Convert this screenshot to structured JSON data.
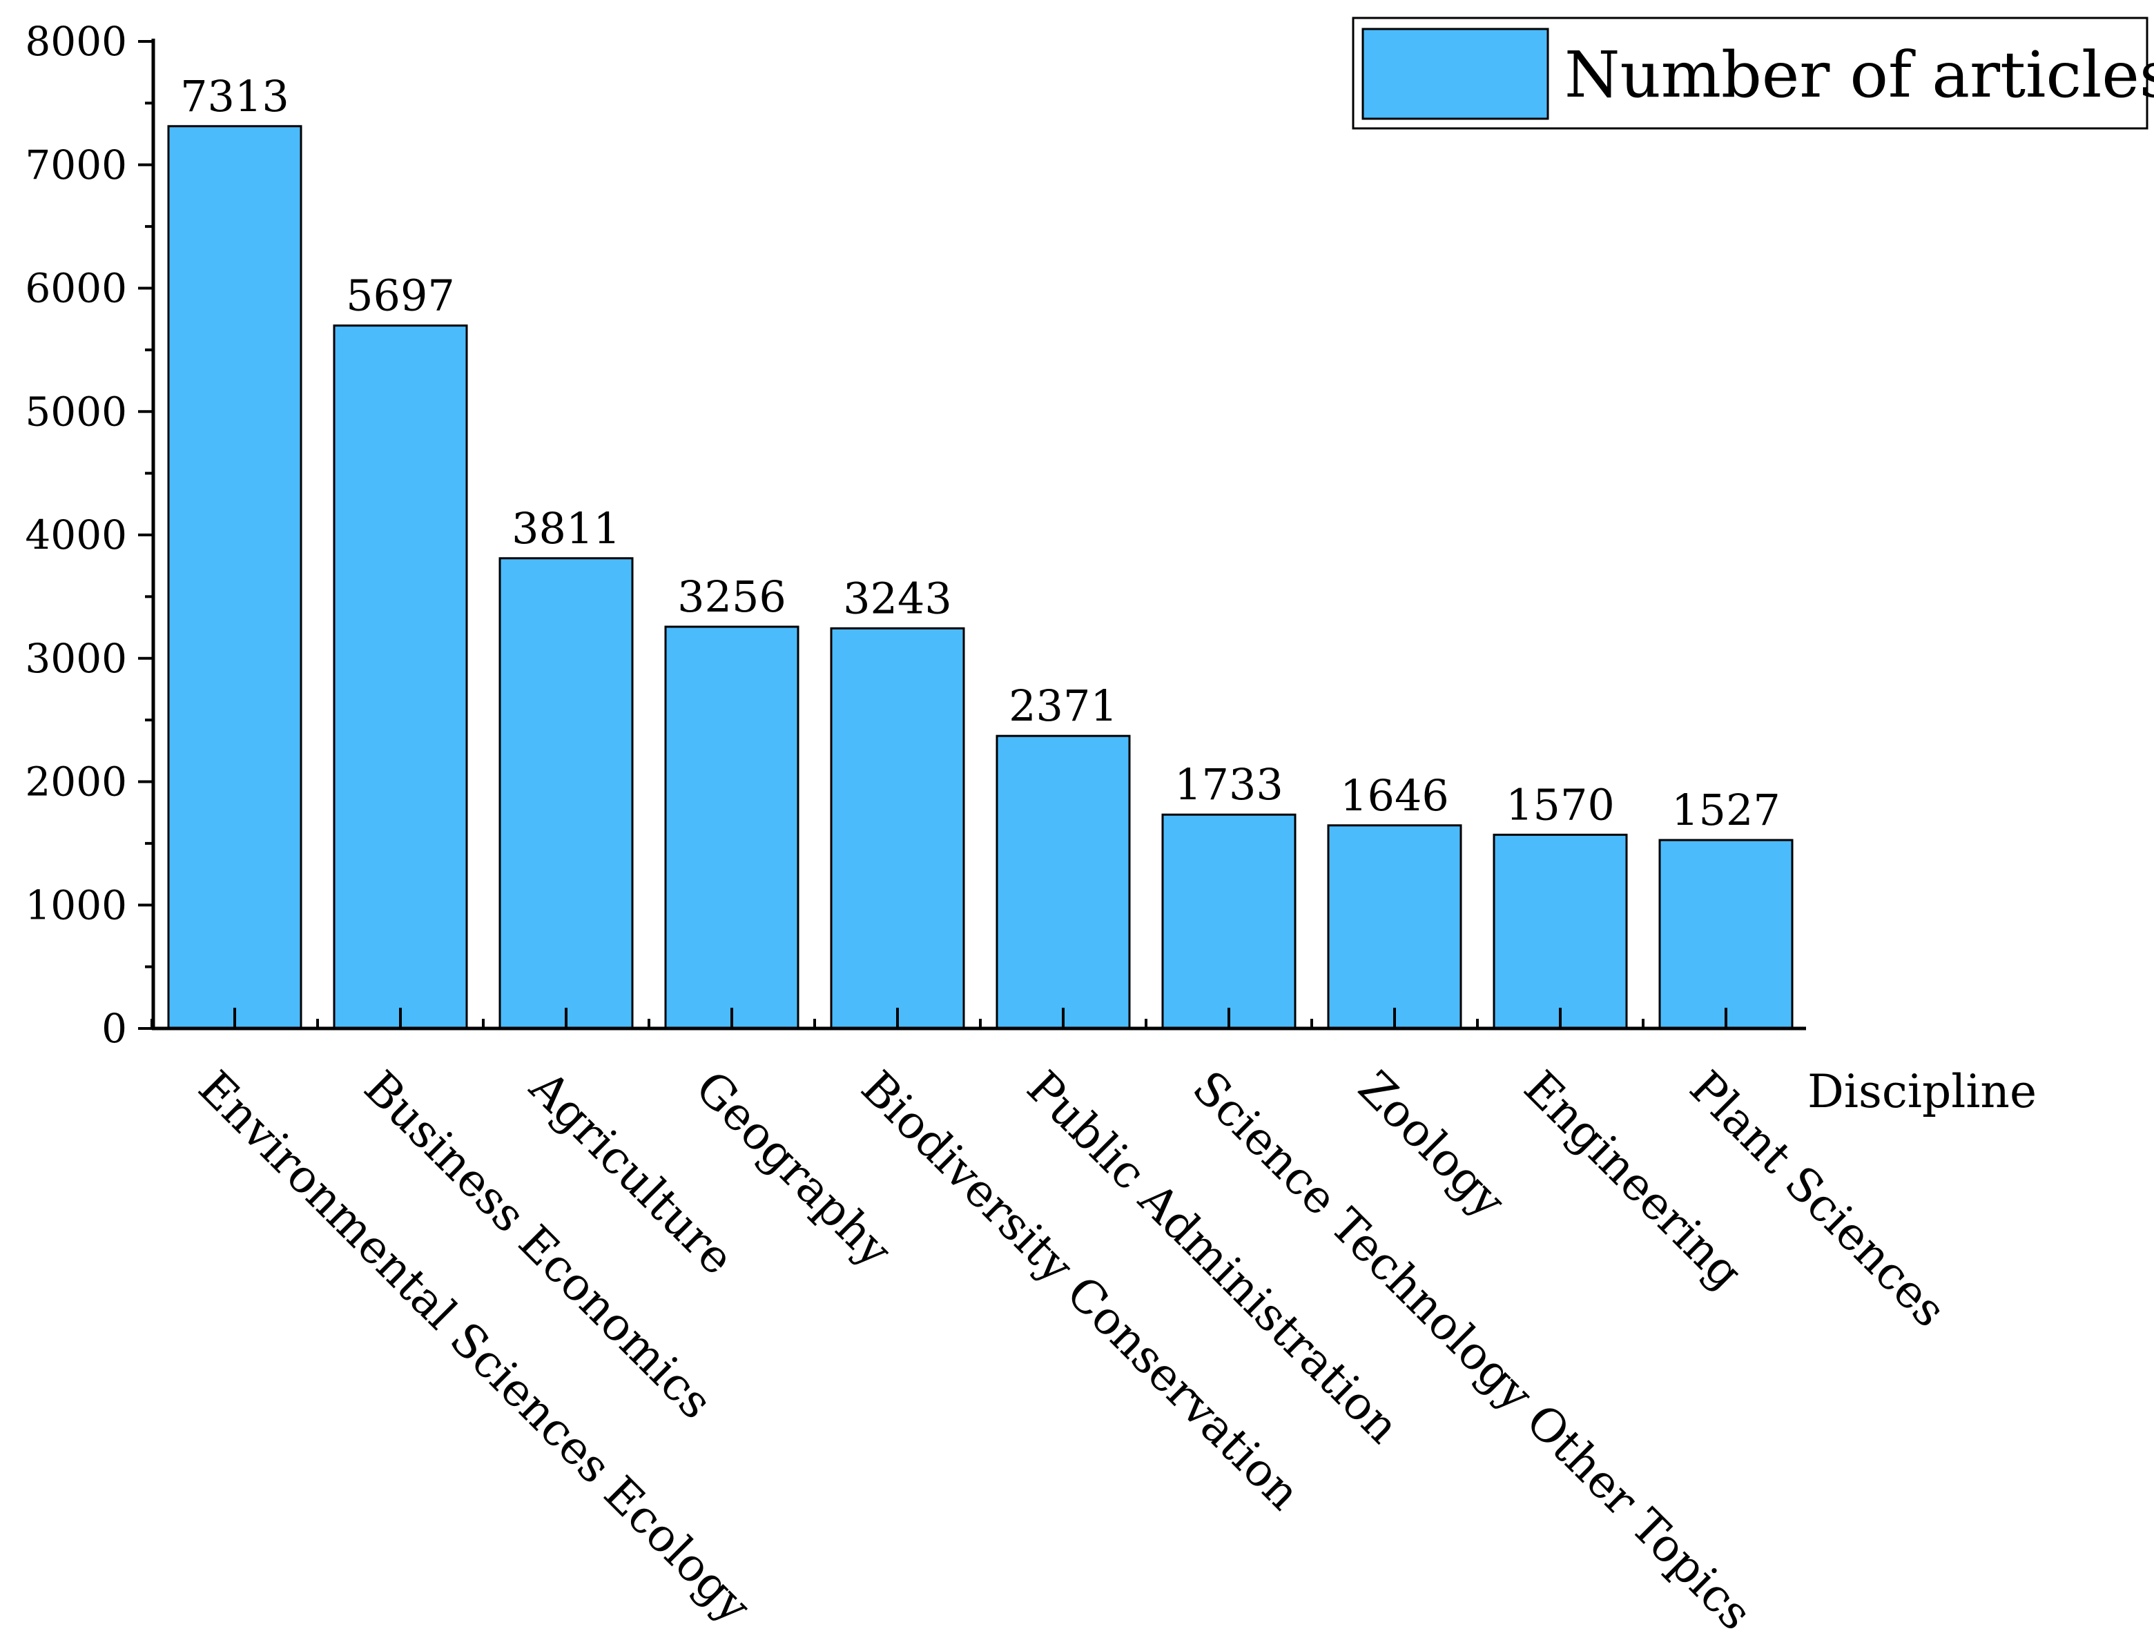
{
  "chart_data": {
    "type": "bar",
    "title": "",
    "xlabel": "Discipline",
    "ylabel": "",
    "ylim": [
      0,
      8000
    ],
    "yticks": [
      0,
      1000,
      2000,
      3000,
      4000,
      5000,
      6000,
      7000,
      8000
    ],
    "grid": false,
    "legend": {
      "placement": "top-right"
    },
    "categories": [
      "Environmental Sciences Ecology",
      "Business Economics",
      "Agriculture",
      "Geography",
      "Biodiversity Conservation",
      "Public Administration",
      "Science Technology Other Topics",
      "Zoology",
      "Engineering",
      "Plant Sciences"
    ],
    "series": [
      {
        "name": "Number of articles",
        "color": "#4BBBFC",
        "values": [
          7313,
          5697,
          3811,
          3256,
          3243,
          2371,
          1733,
          1646,
          1570,
          1527
        ]
      }
    ]
  }
}
